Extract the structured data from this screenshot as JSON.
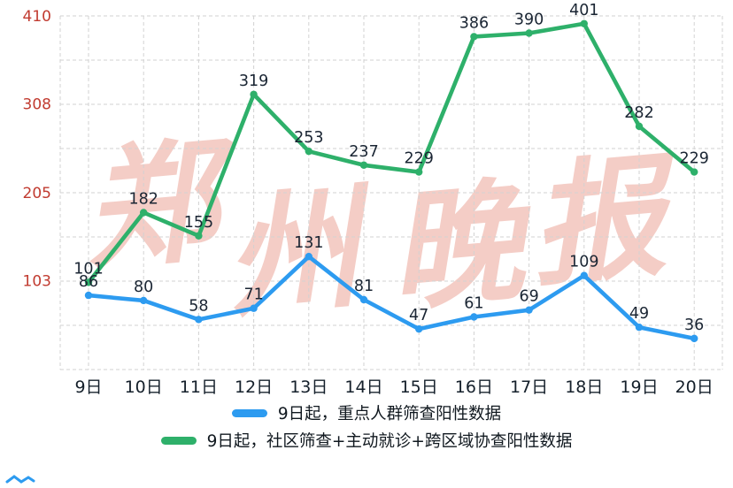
{
  "chart_data": {
    "type": "line",
    "categories": [
      "9日",
      "10日",
      "11日",
      "12日",
      "13日",
      "14日",
      "15日",
      "16日",
      "17日",
      "18日",
      "19日",
      "20日"
    ],
    "series": [
      {
        "name": "9日起，重点人群筛查阳性数据",
        "color": "#2d9bf0",
        "values": [
          86,
          80,
          58,
          71,
          131,
          81,
          47,
          61,
          69,
          109,
          49,
          36
        ]
      },
      {
        "name": "9日起，社区筛查+主动就诊+跨区域协查阳性数据",
        "color": "#2eb06a",
        "values": [
          101,
          182,
          155,
          319,
          253,
          237,
          229,
          386,
          390,
          401,
          282,
          229
        ]
      }
    ],
    "title": "",
    "xlabel": "",
    "ylabel": "",
    "ylim": [
      0,
      410
    ],
    "y_ticks": [
      103,
      205,
      308,
      410
    ],
    "grid": true,
    "legend_position": "bottom"
  },
  "watermark": {
    "text": "郑州晚报",
    "chars": [
      "郑",
      "州",
      "晚",
      "报"
    ],
    "color": "#f3c5bd"
  },
  "colors": {
    "background": "#ffffff",
    "grid": "#d2d2d2",
    "y_tick_label": "#c13b30",
    "x_tick_label": "#15202b",
    "data_label": "#1a2533",
    "series_blue": "#2d9bf0",
    "series_green": "#2eb06a"
  }
}
